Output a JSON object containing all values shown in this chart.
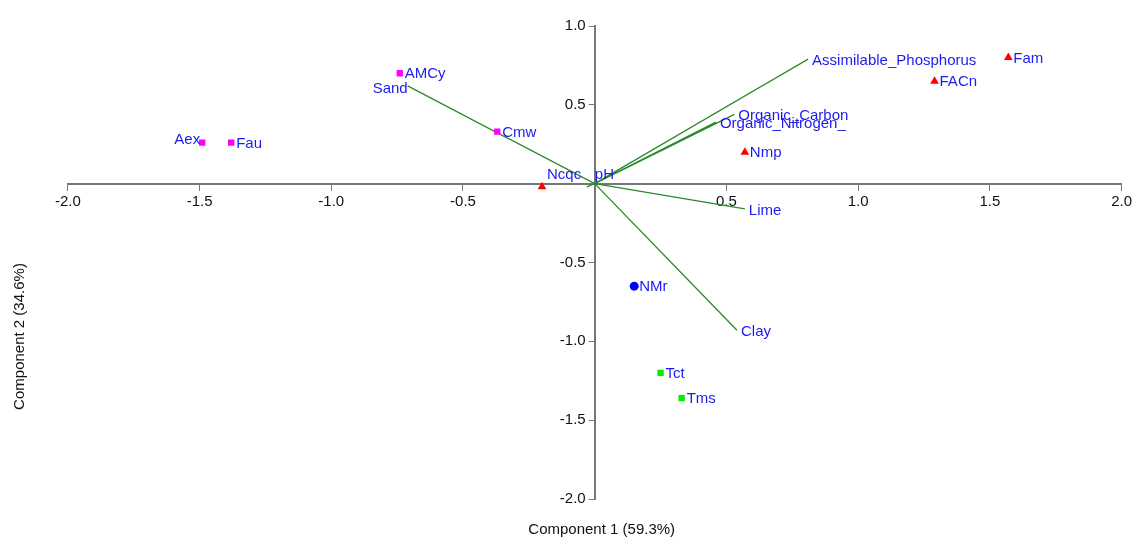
{
  "chart_data": {
    "type": "scatter",
    "xlabel": "Component 1 (59.3%)",
    "ylabel": "Component 2 (34.6%)",
    "xlim": [
      -2,
      2
    ],
    "xticks": [
      {
        "value": -2,
        "label": "-2.0"
      },
      {
        "value": -1.5,
        "label": "-1.5"
      },
      {
        "value": -1,
        "label": "-1.0"
      },
      {
        "value": -0.5,
        "label": "-0.5"
      },
      {
        "value": 0.5,
        "label": "0.5"
      },
      {
        "value": 1,
        "label": "1.0"
      },
      {
        "value": 1.5,
        "label": "1.5"
      },
      {
        "value": 2,
        "label": "2.0"
      }
    ],
    "ylim": [
      -2,
      1
    ],
    "yticks": [
      {
        "value": -2,
        "label": "-2.0"
      },
      {
        "value": -1.5,
        "label": "-1.5"
      },
      {
        "value": -1,
        "label": "-1.0"
      },
      {
        "value": -0.5,
        "label": "-0.5"
      },
      {
        "value": 0.5,
        "label": "0.5"
      },
      {
        "value": 1,
        "label": "1.0"
      }
    ],
    "series": [
      {
        "type": "scatter",
        "marker": "square",
        "color": "#ff00ff",
        "x": [
          -1.49,
          -1.38,
          -0.74,
          -0.37
        ],
        "values": [
          0.26,
          0.26,
          0.7,
          0.33
        ],
        "value_labels": [
          "Aex",
          "Fau",
          "AMCy",
          "Cmw"
        ]
      },
      {
        "type": "scatter",
        "marker": "triangle",
        "color": "#ff0000",
        "x": [
          1.57,
          1.29,
          0.57,
          -0.2
        ],
        "values": [
          0.8,
          0.65,
          0.2,
          -0.02
        ],
        "value_labels": [
          "Fam",
          "FACn",
          "Nmp",
          "Ncqc"
        ]
      },
      {
        "type": "scatter",
        "marker": "circle",
        "color": "#0000ff",
        "x": [
          0.15
        ],
        "values": [
          -0.65
        ],
        "value_labels": [
          "NMr"
        ]
      },
      {
        "type": "scatter",
        "marker": "square",
        "color": "#00ee00",
        "x": [
          0.25,
          0.33
        ],
        "values": [
          -1.2,
          -1.36
        ],
        "value_labels": [
          "Tct",
          "Tms"
        ]
      },
      {
        "type": "line",
        "marker": "none",
        "color": "#2a8a2a",
        "x": [
          0,
          0.81,
          null,
          0,
          0.53,
          null,
          0,
          0.46,
          null,
          0,
          0.57,
          null,
          0,
          0.54,
          null,
          0,
          -0.71,
          null,
          0,
          -0.03
        ],
        "values": [
          0,
          0.79,
          null,
          0,
          0.44,
          null,
          0,
          0.39,
          null,
          0,
          -0.16,
          null,
          0,
          -0.93,
          null,
          0,
          0.62,
          null,
          0,
          -0.02
        ],
        "value_labels": [
          null,
          "Assimilable_Phosphorus",
          null,
          null,
          "Organic_Carbon",
          null,
          null,
          "Organic_Nitrogen_",
          null,
          null,
          "Lime",
          null,
          null,
          "Clay",
          null,
          null,
          "Sand",
          null,
          null,
          "pH"
        ]
      }
    ]
  }
}
